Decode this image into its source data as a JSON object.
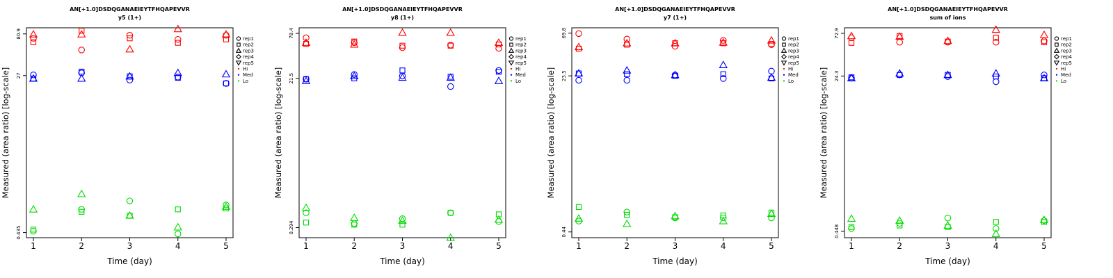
{
  "page": {
    "title": "AN[+1.0]DSDQGANAEIEYTFHQAPEVVR"
  },
  "legend": {
    "entries": [
      {
        "label": "rep1",
        "marker": "circle"
      },
      {
        "label": "rep2",
        "marker": "square"
      },
      {
        "label": "rep3",
        "marker": "triangle"
      },
      {
        "label": "rep4",
        "marker": "diamond"
      },
      {
        "label": "rep5",
        "marker": "triangle-down"
      },
      {
        "label": "Hi",
        "marker": "dot",
        "color": "#ff0000"
      },
      {
        "label": "Med",
        "marker": "dot",
        "color": "#0000ff"
      },
      {
        "label": "Lo",
        "marker": "dot",
        "color": "#00dd00"
      }
    ]
  },
  "colors": {
    "Hi": "#ff0000",
    "Med": "#0000ff",
    "Lo": "#00dd00",
    "axis": "#000000"
  },
  "chart_data": [
    {
      "type": "scatter",
      "title": "AN[+1.0]DSDQGANAEIEYTFHQAPEVVR",
      "subtitle": "y5 (1+)",
      "xlabel": "Time (day)",
      "ylabel": "Measured (area ratio) [log-scale]",
      "xticks": [
        "1",
        "2",
        "3",
        "4",
        "5"
      ],
      "yticks": [
        "0.435",
        "27",
        "80.9"
      ],
      "ylim": [
        0.38,
        95
      ],
      "yscale": "log",
      "legend_position": "right",
      "series": [
        {
          "name": "Hi",
          "points": [
            [
              1,
              "rep1",
              72
            ],
            [
              2,
              "rep1",
              53
            ],
            [
              3,
              "rep1",
              78
            ],
            [
              4,
              "rep1",
              70
            ],
            [
              5,
              "rep1",
              78
            ],
            [
              1,
              "rep2",
              65
            ],
            [
              2,
              "rep2",
              88
            ],
            [
              3,
              "rep2",
              72
            ],
            [
              4,
              "rep2",
              64
            ],
            [
              5,
              "rep2",
              70
            ],
            [
              1,
              "rep3",
              80
            ],
            [
              2,
              "rep3",
              80
            ],
            [
              3,
              "rep3",
              54
            ],
            [
              4,
              "rep3",
              92
            ],
            [
              5,
              "rep3",
              80
            ]
          ]
        },
        {
          "name": "Med",
          "points": [
            [
              1,
              "rep1",
              27.5
            ],
            [
              2,
              "rep1",
              29
            ],
            [
              3,
              "rep1",
              24
            ],
            [
              4,
              "rep1",
              26
            ],
            [
              5,
              "rep1",
              22
            ],
            [
              1,
              "rep2",
              25
            ],
            [
              2,
              "rep2",
              30
            ],
            [
              3,
              "rep2",
              26.5
            ],
            [
              4,
              "rep2",
              25.5
            ],
            [
              5,
              "rep2",
              22
            ],
            [
              1,
              "rep3",
              25
            ],
            [
              2,
              "rep3",
              25
            ],
            [
              3,
              "rep3",
              26.5
            ],
            [
              4,
              "rep3",
              29
            ],
            [
              5,
              "rep3",
              28
            ]
          ]
        },
        {
          "name": "Lo",
          "points": [
            [
              1,
              "rep1",
              0.45
            ],
            [
              2,
              "rep1",
              0.8
            ],
            [
              3,
              "rep1",
              1.0
            ],
            [
              4,
              "rep1",
              0.42
            ],
            [
              5,
              "rep1",
              0.9
            ],
            [
              1,
              "rep2",
              0.47
            ],
            [
              2,
              "rep2",
              0.75
            ],
            [
              3,
              "rep2",
              0.68
            ],
            [
              4,
              "rep2",
              0.8
            ],
            [
              5,
              "rep2",
              0.82
            ],
            [
              1,
              "rep3",
              0.8
            ],
            [
              2,
              "rep3",
              1.2
            ],
            [
              3,
              "rep3",
              0.68
            ],
            [
              4,
              "rep3",
              0.5
            ],
            [
              5,
              "rep3",
              0.86
            ]
          ]
        }
      ]
    },
    {
      "type": "scatter",
      "title": "AN[+1.0]DSDQGANAEIEYTFHQAPEVVR",
      "subtitle": "y8 (1+)",
      "xlabel": "Time (day)",
      "ylabel": "Measured (area ratio) [log-scale]",
      "xticks": [
        "1",
        "2",
        "3",
        "4",
        "5"
      ],
      "yticks": [
        "0.294",
        "21.5",
        "78.4"
      ],
      "ylim": [
        0.22,
        92
      ],
      "yscale": "log",
      "legend_position": "right",
      "series": [
        {
          "name": "Hi",
          "points": [
            [
              1,
              "rep1",
              69
            ],
            [
              2,
              "rep1",
              60
            ],
            [
              3,
              "rep1",
              52
            ],
            [
              4,
              "rep1",
              56
            ],
            [
              5,
              "rep1",
              51
            ],
            [
              1,
              "rep2",
              58
            ],
            [
              2,
              "rep2",
              62
            ],
            [
              3,
              "rep2",
              55
            ],
            [
              4,
              "rep2",
              55
            ],
            [
              5,
              "rep2",
              57
            ],
            [
              1,
              "rep3",
              60
            ],
            [
              2,
              "rep3",
              57
            ],
            [
              3,
              "rep3",
              80
            ],
            [
              4,
              "rep3",
              80
            ],
            [
              5,
              "rep3",
              60
            ]
          ]
        },
        {
          "name": "Med",
          "points": [
            [
              1,
              "rep1",
              21
            ],
            [
              2,
              "rep1",
              24
            ],
            [
              3,
              "rep1",
              23
            ],
            [
              4,
              "rep1",
              17
            ],
            [
              5,
              "rep1",
              27
            ],
            [
              1,
              "rep2",
              21
            ],
            [
              2,
              "rep2",
              21.5
            ],
            [
              3,
              "rep2",
              27
            ],
            [
              4,
              "rep2",
              22.5
            ],
            [
              5,
              "rep2",
              26
            ],
            [
              1,
              "rep3",
              20
            ],
            [
              2,
              "rep3",
              23
            ],
            [
              3,
              "rep3",
              22
            ],
            [
              4,
              "rep3",
              22
            ],
            [
              5,
              "rep3",
              20
            ]
          ]
        },
        {
          "name": "Lo",
          "points": [
            [
              1,
              "rep1",
              0.45
            ],
            [
              2,
              "rep1",
              0.33
            ],
            [
              3,
              "rep1",
              0.38
            ],
            [
              4,
              "rep1",
              0.45
            ],
            [
              5,
              "rep1",
              0.35
            ],
            [
              1,
              "rep2",
              0.34
            ],
            [
              2,
              "rep2",
              0.32
            ],
            [
              3,
              "rep2",
              0.32
            ],
            [
              4,
              "rep2",
              0.45
            ],
            [
              5,
              "rep2",
              0.43
            ],
            [
              1,
              "rep3",
              0.52
            ],
            [
              2,
              "rep3",
              0.39
            ],
            [
              3,
              "rep3",
              0.36
            ],
            [
              4,
              "rep3",
              0.22
            ],
            [
              5,
              "rep3",
              0.37
            ]
          ]
        }
      ]
    },
    {
      "type": "scatter",
      "title": "AN[+1.0]DSDQGANAEIEYTFHQAPEVVR",
      "subtitle": "y7 (1+)",
      "xlabel": "Time (day)",
      "ylabel": "Measured (area ratio) [log-scale]",
      "xticks": [
        "1",
        "2",
        "3",
        "4",
        "5"
      ],
      "yticks": [
        "0.44",
        "23.5",
        "69.8"
      ],
      "ylim": [
        0.38,
        80
      ],
      "yscale": "log",
      "legend_position": "right",
      "series": [
        {
          "name": "Hi",
          "points": [
            [
              1,
              "rep1",
              69
            ],
            [
              2,
              "rep1",
              60
            ],
            [
              3,
              "rep1",
              50
            ],
            [
              4,
              "rep1",
              58
            ],
            [
              5,
              "rep1",
              52
            ],
            [
              1,
              "rep2",
              47
            ],
            [
              2,
              "rep2",
              52
            ],
            [
              3,
              "rep2",
              54
            ],
            [
              4,
              "rep2",
              54
            ],
            [
              5,
              "rep2",
              53
            ],
            [
              1,
              "rep3",
              49
            ],
            [
              2,
              "rep3",
              54
            ],
            [
              3,
              "rep3",
              54
            ],
            [
              4,
              "rep3",
              55
            ],
            [
              5,
              "rep3",
              58
            ]
          ]
        },
        {
          "name": "Med",
          "points": [
            [
              1,
              "rep1",
              21
            ],
            [
              2,
              "rep1",
              21
            ],
            [
              3,
              "rep1",
              24
            ],
            [
              4,
              "rep1",
              22
            ],
            [
              5,
              "rep1",
              26.5
            ],
            [
              1,
              "rep2",
              25
            ],
            [
              2,
              "rep2",
              24.5
            ],
            [
              3,
              "rep2",
              23.5
            ],
            [
              4,
              "rep2",
              24.5
            ],
            [
              5,
              "rep2",
              22
            ],
            [
              1,
              "rep3",
              25
            ],
            [
              2,
              "rep3",
              27
            ],
            [
              3,
              "rep3",
              24
            ],
            [
              4,
              "rep3",
              31
            ],
            [
              5,
              "rep3",
              22.5
            ]
          ]
        },
        {
          "name": "Lo",
          "points": [
            [
              1,
              "rep1",
              0.58
            ],
            [
              2,
              "rep1",
              0.73
            ],
            [
              3,
              "rep1",
              0.63
            ],
            [
              4,
              "rep1",
              0.63
            ],
            [
              5,
              "rep1",
              0.63
            ],
            [
              1,
              "rep2",
              0.83
            ],
            [
              2,
              "rep2",
              0.68
            ],
            [
              3,
              "rep2",
              0.64
            ],
            [
              4,
              "rep2",
              0.67
            ],
            [
              5,
              "rep2",
              0.72
            ],
            [
              1,
              "rep3",
              0.62
            ],
            [
              2,
              "rep3",
              0.54
            ],
            [
              3,
              "rep3",
              0.66
            ],
            [
              4,
              "rep3",
              0.58
            ],
            [
              5,
              "rep3",
              0.7
            ]
          ]
        }
      ]
    },
    {
      "type": "scatter",
      "title": "AN[+1.0]DSDQGANAEIEYTFHQAPEVVR",
      "subtitle": "sum of ions",
      "xlabel": "Time (day)",
      "ylabel": "Measured (area ratio) [log-scale]",
      "xticks": [
        "1",
        "2",
        "3",
        "4",
        "5"
      ],
      "yticks": [
        "0.448",
        "24.3",
        "72.9"
      ],
      "ylim": [
        0.38,
        84
      ],
      "yscale": "log",
      "legend_position": "right",
      "series": [
        {
          "name": "Hi",
          "points": [
            [
              1,
              "rep1",
              65
            ],
            [
              2,
              "rep1",
              58
            ],
            [
              3,
              "rep1",
              58
            ],
            [
              4,
              "rep1",
              58
            ],
            [
              5,
              "rep1",
              60
            ],
            [
              1,
              "rep2",
              57
            ],
            [
              2,
              "rep2",
              68
            ],
            [
              3,
              "rep2",
              59
            ],
            [
              4,
              "rep2",
              65
            ],
            [
              5,
              "rep2",
              58
            ],
            [
              1,
              "rep3",
              68
            ],
            [
              2,
              "rep3",
              67
            ],
            [
              3,
              "rep3",
              60
            ],
            [
              4,
              "rep3",
              80
            ],
            [
              5,
              "rep3",
              70
            ]
          ]
        },
        {
          "name": "Med",
          "points": [
            [
              1,
              "rep1",
              23
            ],
            [
              2,
              "rep1",
              25
            ],
            [
              3,
              "rep1",
              24
            ],
            [
              4,
              "rep1",
              21
            ],
            [
              5,
              "rep1",
              25
            ],
            [
              1,
              "rep2",
              23.5
            ],
            [
              2,
              "rep2",
              25
            ],
            [
              3,
              "rep2",
              25
            ],
            [
              4,
              "rep2",
              24
            ],
            [
              5,
              "rep2",
              23
            ],
            [
              1,
              "rep3",
              23
            ],
            [
              2,
              "rep3",
              26
            ],
            [
              3,
              "rep3",
              25
            ],
            [
              4,
              "rep3",
              26
            ],
            [
              5,
              "rep3",
              23
            ]
          ]
        },
        {
          "name": "Lo",
          "points": [
            [
              1,
              "rep1",
              0.48
            ],
            [
              2,
              "rep1",
              0.55
            ],
            [
              3,
              "rep1",
              0.63
            ],
            [
              4,
              "rep1",
              0.48
            ],
            [
              5,
              "rep1",
              0.59
            ],
            [
              1,
              "rep2",
              0.5
            ],
            [
              2,
              "rep2",
              0.52
            ],
            [
              3,
              "rep2",
              0.5
            ],
            [
              4,
              "rep2",
              0.57
            ],
            [
              5,
              "rep2",
              0.57
            ],
            [
              1,
              "rep3",
              0.62
            ],
            [
              2,
              "rep3",
              0.59
            ],
            [
              3,
              "rep3",
              0.52
            ],
            [
              4,
              "rep3",
              0.42
            ],
            [
              5,
              "rep3",
              0.6
            ]
          ]
        }
      ]
    }
  ]
}
